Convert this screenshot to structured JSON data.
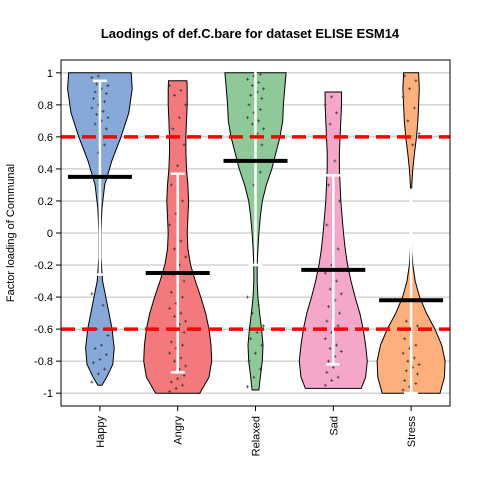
{
  "chart_data": {
    "type": "violin",
    "title": "Laodings of def.C.bare for dataset ELISE ESM14",
    "xlabel": "",
    "ylabel": "Factor loading of Communal",
    "ylim": [
      -1.08,
      1.08
    ],
    "yticks": [
      "-1",
      "-0.8",
      "-0.6",
      "-0.4",
      "-0.2",
      "0",
      "0.2",
      "0.4",
      "0.6",
      "0.8",
      "1"
    ],
    "grid": true,
    "reference_lines": [
      0.6,
      -0.6
    ],
    "colors": {
      "reference": "#ff0000",
      "grid": "#bebebe",
      "mean": "#000000",
      "errorbar": "#ffffff",
      "points": "#333333"
    },
    "categories": [
      "Happy",
      "Angry",
      "Relaxed",
      "Sad",
      "Stress"
    ],
    "series": [
      {
        "category": "Happy",
        "color": "#87a9d9",
        "mean": 0.35,
        "errorbar": [
          -0.26,
          0.95
        ],
        "range": [
          -0.95,
          1.0
        ],
        "density": [
          [
            -0.95,
            0.06
          ],
          [
            -0.9,
            0.2
          ],
          [
            -0.82,
            0.38
          ],
          [
            -0.72,
            0.42
          ],
          [
            -0.6,
            0.36
          ],
          [
            -0.45,
            0.22
          ],
          [
            -0.3,
            0.08
          ],
          [
            -0.15,
            0.03
          ],
          [
            0.0,
            0.03
          ],
          [
            0.15,
            0.06
          ],
          [
            0.3,
            0.14
          ],
          [
            0.45,
            0.35
          ],
          [
            0.6,
            0.62
          ],
          [
            0.75,
            0.85
          ],
          [
            0.9,
            0.95
          ],
          [
            1.0,
            0.92
          ]
        ],
        "points": [
          -0.93,
          -0.88,
          -0.85,
          -0.81,
          -0.79,
          -0.76,
          -0.72,
          -0.7,
          -0.64,
          -0.6,
          -0.45,
          -0.38,
          0.5,
          0.55,
          0.6,
          0.62,
          0.65,
          0.68,
          0.7,
          0.72,
          0.74,
          0.76,
          0.78,
          0.8,
          0.82,
          0.84,
          0.85,
          0.87,
          0.88,
          0.9,
          0.92,
          0.93,
          0.95,
          0.97,
          0.98
        ]
      },
      {
        "category": "Angry",
        "color": "#f4797d",
        "mean": -0.25,
        "errorbar": [
          -0.87,
          0.37
        ],
        "range": [
          -1.0,
          0.95
        ],
        "density": [
          [
            -1.0,
            0.65
          ],
          [
            -0.9,
            0.92
          ],
          [
            -0.8,
            1.0
          ],
          [
            -0.7,
            0.98
          ],
          [
            -0.6,
            0.92
          ],
          [
            -0.5,
            0.82
          ],
          [
            -0.4,
            0.68
          ],
          [
            -0.3,
            0.52
          ],
          [
            -0.2,
            0.38
          ],
          [
            -0.1,
            0.3
          ],
          [
            0.0,
            0.28
          ],
          [
            0.1,
            0.3
          ],
          [
            0.2,
            0.32
          ],
          [
            0.3,
            0.3
          ],
          [
            0.4,
            0.26
          ],
          [
            0.5,
            0.24
          ],
          [
            0.6,
            0.24
          ],
          [
            0.7,
            0.26
          ],
          [
            0.8,
            0.28
          ],
          [
            0.9,
            0.28
          ],
          [
            0.95,
            0.27
          ]
        ],
        "points": [
          -0.99,
          -0.97,
          -0.95,
          -0.93,
          -0.91,
          -0.89,
          -0.87,
          -0.85,
          -0.83,
          -0.8,
          -0.78,
          -0.75,
          -0.72,
          -0.7,
          -0.68,
          -0.65,
          -0.62,
          -0.6,
          -0.57,
          -0.55,
          -0.52,
          -0.5,
          -0.47,
          -0.44,
          -0.4,
          -0.37,
          -0.33,
          -0.3,
          -0.26,
          -0.2,
          -0.15,
          -0.1,
          -0.05,
          0.05,
          0.12,
          0.2,
          0.3,
          0.42,
          0.55,
          0.65,
          0.72,
          0.8,
          0.86,
          0.89,
          0.92
        ]
      },
      {
        "category": "Relaxed",
        "color": "#8fc99a",
        "mean": 0.45,
        "errorbar": [
          -0.2,
          1.08
        ],
        "range": [
          -0.98,
          1.0
        ],
        "density": [
          [
            -0.98,
            0.1
          ],
          [
            -0.9,
            0.14
          ],
          [
            -0.8,
            0.2
          ],
          [
            -0.7,
            0.22
          ],
          [
            -0.6,
            0.18
          ],
          [
            -0.5,
            0.12
          ],
          [
            -0.4,
            0.07
          ],
          [
            -0.3,
            0.05
          ],
          [
            -0.2,
            0.05
          ],
          [
            -0.1,
            0.07
          ],
          [
            0.0,
            0.1
          ],
          [
            0.1,
            0.14
          ],
          [
            0.2,
            0.2
          ],
          [
            0.3,
            0.32
          ],
          [
            0.4,
            0.48
          ],
          [
            0.5,
            0.6
          ],
          [
            0.6,
            0.72
          ],
          [
            0.7,
            0.8
          ],
          [
            0.8,
            0.82
          ],
          [
            0.9,
            0.86
          ],
          [
            1.0,
            0.9
          ]
        ],
        "points": [
          -0.96,
          -0.9,
          -0.85,
          -0.8,
          -0.75,
          -0.7,
          -0.66,
          -0.62,
          -0.58,
          -0.5,
          -0.45,
          -0.4,
          0.3,
          0.38,
          0.45,
          0.5,
          0.55,
          0.6,
          0.62,
          0.65,
          0.68,
          0.7,
          0.72,
          0.75,
          0.77,
          0.8,
          0.82,
          0.84,
          0.86,
          0.88,
          0.9,
          0.92,
          0.94,
          0.96,
          0.98,
          0.99
        ]
      },
      {
        "category": "Sad",
        "color": "#f4a7c9",
        "mean": -0.23,
        "errorbar": [
          -0.82,
          0.36
        ],
        "range": [
          -0.97,
          0.88
        ],
        "density": [
          [
            -0.97,
            0.82
          ],
          [
            -0.9,
            0.95
          ],
          [
            -0.8,
            1.0
          ],
          [
            -0.7,
            0.95
          ],
          [
            -0.6,
            0.88
          ],
          [
            -0.5,
            0.78
          ],
          [
            -0.4,
            0.64
          ],
          [
            -0.3,
            0.52
          ],
          [
            -0.2,
            0.42
          ],
          [
            -0.1,
            0.35
          ],
          [
            0.0,
            0.3
          ],
          [
            0.1,
            0.26
          ],
          [
            0.2,
            0.22
          ],
          [
            0.3,
            0.2
          ],
          [
            0.4,
            0.18
          ],
          [
            0.5,
            0.18
          ],
          [
            0.6,
            0.2
          ],
          [
            0.7,
            0.22
          ],
          [
            0.8,
            0.24
          ],
          [
            0.88,
            0.24
          ]
        ],
        "points": [
          -0.95,
          -0.92,
          -0.9,
          -0.87,
          -0.84,
          -0.82,
          -0.8,
          -0.77,
          -0.74,
          -0.72,
          -0.7,
          -0.66,
          -0.62,
          -0.58,
          -0.55,
          -0.52,
          -0.5,
          -0.46,
          -0.42,
          -0.38,
          -0.35,
          -0.3,
          -0.25,
          -0.2,
          -0.1,
          0.05,
          0.15,
          0.2,
          0.3,
          0.45,
          0.6,
          0.68,
          0.75,
          0.8,
          0.85
        ]
      },
      {
        "category": "Stress",
        "color": "#fdb07b",
        "mean": -0.42,
        "errorbar": [
          -1.0,
          0.27
        ],
        "range": [
          -1.0,
          1.0
        ],
        "density": [
          [
            -1.0,
            0.85
          ],
          [
            -0.9,
            0.98
          ],
          [
            -0.8,
            1.0
          ],
          [
            -0.7,
            0.9
          ],
          [
            -0.6,
            0.7
          ],
          [
            -0.5,
            0.45
          ],
          [
            -0.4,
            0.25
          ],
          [
            -0.3,
            0.12
          ],
          [
            -0.2,
            0.05
          ],
          [
            -0.1,
            0.02
          ],
          [
            0.0,
            0.01
          ],
          [
            0.1,
            0.01
          ],
          [
            0.2,
            0.01
          ],
          [
            0.3,
            0.02
          ],
          [
            0.4,
            0.05
          ],
          [
            0.5,
            0.1
          ],
          [
            0.6,
            0.16
          ],
          [
            0.7,
            0.2
          ],
          [
            0.8,
            0.22
          ],
          [
            0.9,
            0.24
          ],
          [
            1.0,
            0.22
          ]
        ],
        "points": [
          -0.98,
          -0.96,
          -0.94,
          -0.92,
          -0.9,
          -0.88,
          -0.86,
          -0.84,
          -0.82,
          -0.8,
          -0.78,
          -0.75,
          -0.72,
          -0.7,
          -0.66,
          -0.62,
          -0.58,
          -0.55,
          0.55,
          0.62,
          0.7,
          0.78,
          0.85,
          0.9,
          0.95,
          0.98
        ]
      }
    ]
  }
}
